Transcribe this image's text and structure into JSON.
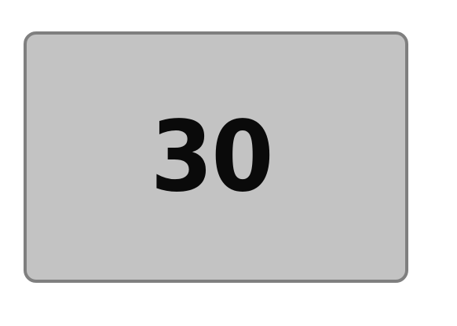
{
  "card": {
    "value": "30",
    "background_color": "#c3c3c3",
    "border_color": "#7f7f7f",
    "text_color": "#0a0a0a"
  }
}
